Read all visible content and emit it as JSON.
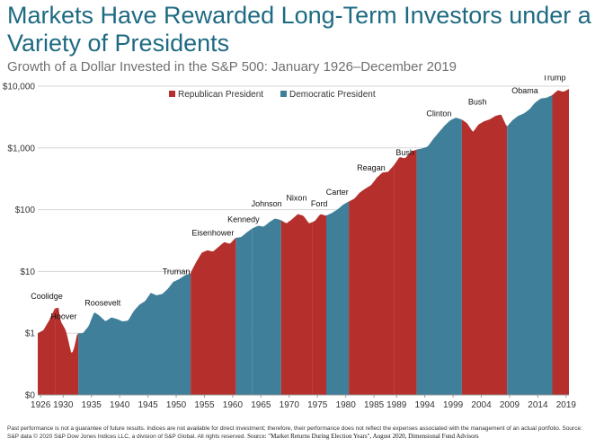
{
  "title": "Markets Have Rewarded Long-Term Investors under a Variety of Presidents",
  "subtitle": "Growth of a Dollar Invested in the S&P 500: January 1926–December 2019",
  "footnote": "Past performance is not a guarantee of future results. Indices are not available for direct investment; therefore, their performance does not reflect the expenses associated with the management of an actual portfolio. Source: S&P data © 2020 S&P Dow Jones Indices LLC, a division of S&P Global. All rights reserved.",
  "source": "Source: \"Market Returns During Election Years\", August 2020, Dimensional Fund Advisors",
  "colors": {
    "republican": "#b5302d",
    "democratic": "#3f7f9a",
    "title": "#1e6a82"
  },
  "chart_data": {
    "type": "area",
    "y_scale": "log",
    "ylim": [
      0.1,
      10000
    ],
    "xlim": [
      1926,
      2020
    ],
    "yticks": [
      {
        "value": 10000,
        "label": "$10,000"
      },
      {
        "value": 1000,
        "label": "$1,000"
      },
      {
        "value": 100,
        "label": "$100"
      },
      {
        "value": 10,
        "label": "$10"
      },
      {
        "value": 1,
        "label": "$1"
      },
      {
        "value": 0.1,
        "label": "$0"
      }
    ],
    "xticks": [
      1926,
      1930,
      1935,
      1940,
      1945,
      1950,
      1955,
      1960,
      1965,
      1970,
      1975,
      1980,
      1985,
      1989,
      1994,
      1999,
      2004,
      2009,
      2014,
      2019
    ],
    "legend": {
      "placement": "top-left",
      "entries": [
        {
          "label": "Republican President",
          "party": "republican"
        },
        {
          "label": "Democratic President",
          "party": "democratic"
        }
      ]
    },
    "series": [
      {
        "name": "Republican President",
        "party": "republican"
      },
      {
        "name": "Democratic President",
        "party": "democratic"
      }
    ],
    "x": [
      1926,
      1927,
      1928,
      1929,
      1929.7,
      1930,
      1931,
      1932,
      1932.5,
      1933,
      1934,
      1935,
      1936,
      1937,
      1938,
      1939,
      1940,
      1941,
      1942,
      1943,
      1944,
      1945,
      1946,
      1947,
      1948,
      1949,
      1950,
      1951,
      1952,
      1953,
      1954,
      1955,
      1956,
      1957,
      1958,
      1959,
      1960,
      1961,
      1962,
      1963,
      1964,
      1965,
      1966,
      1967,
      1968,
      1969,
      1970,
      1971,
      1972,
      1973,
      1974,
      1975,
      1976,
      1977,
      1978,
      1979,
      1980,
      1981,
      1982,
      1983,
      1984,
      1985,
      1986,
      1987,
      1988,
      1989,
      1990,
      1991,
      1992,
      1993,
      1994,
      1995,
      1996,
      1997,
      1998,
      1999,
      2000,
      2001,
      2002,
      2003,
      2004,
      2005,
      2006,
      2007,
      2008,
      2009,
      2010,
      2011,
      2012,
      2013,
      2014,
      2015,
      2016,
      2017,
      2018,
      2019,
      2020
    ],
    "values": [
      1.0,
      1.12,
      1.6,
      2.5,
      2.6,
      1.6,
      1.1,
      0.45,
      0.6,
      1.0,
      1.0,
      1.3,
      2.2,
      1.9,
      1.55,
      1.8,
      1.7,
      1.55,
      1.6,
      2.3,
      2.9,
      3.3,
      4.5,
      4.1,
      4.3,
      5.2,
      6.8,
      7.5,
      8.6,
      9.3,
      14.0,
      20.0,
      22.0,
      21.0,
      25.0,
      30.0,
      28.0,
      35.0,
      36.0,
      43.0,
      50.0,
      55.0,
      53.0,
      63.0,
      72.0,
      68.0,
      60.0,
      70.0,
      85.0,
      80.0,
      60.0,
      65.0,
      85.0,
      80.0,
      88.0,
      100.0,
      120.0,
      135.0,
      150.0,
      190.0,
      220.0,
      250.0,
      330.0,
      400.0,
      410.0,
      520.0,
      710.0,
      680.0,
      860.0,
      940.0,
      980.0,
      1050.0,
      1400.0,
      1800.0,
      2300.0,
      2800.0,
      3100.0,
      2900.0,
      2500.0,
      1800.0,
      2400.0,
      2700.0,
      2900.0,
      3300.0,
      3500.0,
      2200.0,
      2800.0,
      3300.0,
      3600.0,
      4200.0,
      5400.0,
      6300.0,
      6500.0,
      7100.0,
      8600.0,
      8100.0,
      9000.0
    ],
    "presidents": [
      {
        "name": "Coolidge",
        "start": 1926,
        "end": 1929.17,
        "party": "republican"
      },
      {
        "name": "Hoover",
        "start": 1929.17,
        "end": 1933.17,
        "party": "republican"
      },
      {
        "name": "Roosevelt",
        "start": 1933.17,
        "end": 1945.25,
        "party": "democratic"
      },
      {
        "name": "Truman",
        "start": 1945.25,
        "end": 1953.05,
        "party": "democratic"
      },
      {
        "name": "Eisenhower",
        "start": 1953.05,
        "end": 1961.05,
        "party": "republican"
      },
      {
        "name": "Kennedy",
        "start": 1961.05,
        "end": 1963.9,
        "party": "democratic"
      },
      {
        "name": "Johnson",
        "start": 1963.9,
        "end": 1969.05,
        "party": "democratic"
      },
      {
        "name": "Nixon",
        "start": 1969.05,
        "end": 1974.6,
        "party": "republican"
      },
      {
        "name": "Ford",
        "start": 1974.6,
        "end": 1977.05,
        "party": "republican"
      },
      {
        "name": "Carter",
        "start": 1977.05,
        "end": 1981.05,
        "party": "democratic"
      },
      {
        "name": "Reagan",
        "start": 1981.05,
        "end": 1989.05,
        "party": "republican"
      },
      {
        "name": "Bush",
        "start": 1989.05,
        "end": 1993.05,
        "party": "republican"
      },
      {
        "name": "Clinton",
        "start": 1993.05,
        "end": 2001.05,
        "party": "democratic"
      },
      {
        "name": "Bush",
        "start": 2001.05,
        "end": 2009.05,
        "party": "republican"
      },
      {
        "name": "Obama",
        "start": 2009.05,
        "end": 2017.05,
        "party": "democratic"
      },
      {
        "name": "Trump",
        "start": 2017.05,
        "end": 2020,
        "party": "republican"
      }
    ],
    "labels": [
      {
        "text": "Coolidge",
        "x": 1927.6,
        "y": 3.6
      },
      {
        "text": "Hoover",
        "x": 1930.6,
        "y": 1.7
      },
      {
        "text": "Roosevelt",
        "x": 1937.5,
        "y": 2.8
      },
      {
        "text": "Truman",
        "x": 1950.5,
        "y": 9.0
      },
      {
        "text": "Eisenhower",
        "x": 1957.0,
        "y": 38.0
      },
      {
        "text": "Kennedy",
        "x": 1962.4,
        "y": 63.0
      },
      {
        "text": "Johnson",
        "x": 1966.5,
        "y": 112.0
      },
      {
        "text": "Nixon",
        "x": 1971.8,
        "y": 140.0
      },
      {
        "text": "Ford",
        "x": 1975.8,
        "y": 112.0
      },
      {
        "text": "Carter",
        "x": 1979.0,
        "y": 175.0
      },
      {
        "text": "Reagan",
        "x": 1985.0,
        "y": 430.0
      },
      {
        "text": "Bush",
        "x": 1991.0,
        "y": 760.0
      },
      {
        "text": "Clinton",
        "x": 1997.0,
        "y": 3250.0
      },
      {
        "text": "Bush",
        "x": 2003.8,
        "y": 5000.0
      },
      {
        "text": "Obama",
        "x": 2012.2,
        "y": 7700.0
      },
      {
        "text": "Trump",
        "x": 2017.4,
        "y": 12500.0
      }
    ]
  }
}
